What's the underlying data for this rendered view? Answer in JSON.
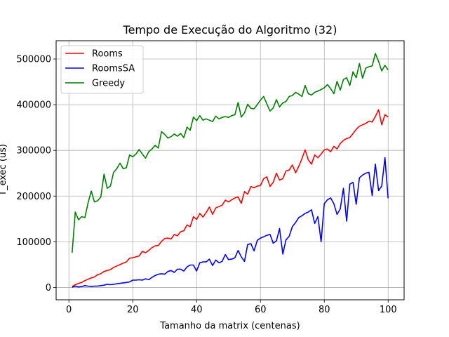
{
  "chart_data": {
    "type": "line",
    "title": "Tempo de Execução do Algoritmo (32)",
    "xlabel": "Tamanho da matrix (centenas)",
    "ylabel": "T_exec (us)",
    "xlim": [
      -4,
      105
    ],
    "ylim": [
      -27000,
      540000
    ],
    "xticks": [
      0,
      20,
      40,
      60,
      80,
      100
    ],
    "xtick_labels": [
      "0",
      "20",
      "40",
      "60",
      "80",
      "100"
    ],
    "yticks": [
      0,
      100000,
      200000,
      300000,
      400000,
      500000
    ],
    "ytick_labels": [
      "0",
      "100000",
      "200000",
      "300000",
      "400000",
      "500000"
    ],
    "grid": true,
    "legend_position": "top-left",
    "series": [
      {
        "name": "Rooms",
        "color": "#ff0000",
        "x": [
          1,
          2,
          3,
          4,
          5,
          6,
          7,
          8,
          9,
          10,
          11,
          12,
          13,
          14,
          15,
          16,
          17,
          18,
          19,
          20,
          21,
          22,
          23,
          24,
          25,
          26,
          27,
          28,
          29,
          30,
          31,
          32,
          33,
          34,
          35,
          36,
          37,
          38,
          39,
          40,
          41,
          42,
          43,
          44,
          45,
          46,
          47,
          48,
          49,
          50,
          51,
          52,
          53,
          54,
          55,
          56,
          57,
          58,
          59,
          60,
          61,
          62,
          63,
          64,
          65,
          66,
          67,
          68,
          69,
          70,
          71,
          72,
          73,
          74,
          75,
          76,
          77,
          78,
          79,
          80,
          81,
          82,
          83,
          84,
          85,
          86,
          87,
          88,
          89,
          90,
          91,
          92,
          93,
          94,
          95,
          96,
          97,
          98,
          99,
          100
        ],
        "values": [
          2000,
          6000,
          9000,
          11000,
          15000,
          18000,
          21000,
          23000,
          28000,
          30000,
          35000,
          37000,
          39000,
          44000,
          47000,
          50000,
          53000,
          56000,
          64000,
          65000,
          67000,
          69000,
          79000,
          76000,
          81000,
          87000,
          91000,
          92000,
          101000,
          107000,
          108000,
          106000,
          116000,
          113000,
          122000,
          124000,
          137000,
          133000,
          155000,
          149000,
          162000,
          154000,
          164000,
          176000,
          160000,
          174000,
          177000,
          180000,
          191000,
          187000,
          192000,
          196000,
          198000,
          184000,
          210000,
          204000,
          221000,
          218000,
          222000,
          223000,
          238000,
          242000,
          221000,
          230000,
          250000,
          235000,
          238000,
          255000,
          257000,
          268000,
          251000,
          265000,
          282000,
          301000,
          279000,
          270000,
          290000,
          284000,
          292000,
          301000,
          303000,
          297000,
          309000,
          303000,
          315000,
          322000,
          326000,
          328000,
          337000,
          346000,
          353000,
          356000,
          359000,
          364000,
          362000,
          374000,
          389000,
          356000,
          378000,
          373000
        ]
      },
      {
        "name": "RoomsSA",
        "color": "#0000ff",
        "x": [
          1,
          2,
          3,
          4,
          5,
          6,
          7,
          8,
          9,
          10,
          11,
          12,
          13,
          14,
          15,
          16,
          17,
          18,
          19,
          20,
          21,
          22,
          23,
          24,
          25,
          26,
          27,
          28,
          29,
          30,
          31,
          32,
          33,
          34,
          35,
          36,
          37,
          38,
          39,
          40,
          41,
          42,
          43,
          44,
          45,
          46,
          47,
          48,
          49,
          50,
          51,
          52,
          53,
          54,
          55,
          56,
          57,
          58,
          59,
          60,
          61,
          62,
          63,
          64,
          65,
          66,
          67,
          68,
          69,
          70,
          71,
          72,
          73,
          74,
          75,
          76,
          77,
          78,
          79,
          80,
          81,
          82,
          83,
          84,
          85,
          86,
          87,
          88,
          89,
          90,
          91,
          92,
          93,
          94,
          95,
          96,
          97,
          98,
          99,
          100
        ],
        "values": [
          500,
          3000,
          1000,
          2000,
          4000,
          3000,
          2000,
          3000,
          3000,
          4000,
          5000,
          7000,
          6000,
          7000,
          8000,
          9000,
          10000,
          11000,
          12000,
          16000,
          16000,
          17000,
          16000,
          19000,
          17000,
          22000,
          26000,
          29000,
          30000,
          29000,
          35000,
          37000,
          33000,
          40000,
          40000,
          36000,
          45000,
          49000,
          49000,
          36000,
          54000,
          56000,
          56000,
          62000,
          48000,
          60000,
          54000,
          57000,
          72000,
          61000,
          62000,
          65000,
          81000,
          67000,
          57000,
          94000,
          96000,
          80000,
          103000,
          108000,
          111000,
          114000,
          116000,
          97000,
          102000,
          129000,
          73000,
          104000,
          112000,
          133000,
          142000,
          153000,
          157000,
          162000,
          165000,
          170000,
          140000,
          155000,
          100000,
          183000,
          192000,
          196000,
          183000,
          160000,
          172000,
          217000,
          145000,
          226000,
          230000,
          182000,
          240000,
          246000,
          250000,
          252000,
          201000,
          270000,
          212000,
          222000,
          284000,
          195000
        ]
      },
      {
        "name": "Greedy",
        "color": "#008000",
        "x": [
          1,
          2,
          3,
          4,
          5,
          6,
          7,
          8,
          9,
          10,
          11,
          12,
          13,
          14,
          15,
          16,
          17,
          18,
          19,
          20,
          21,
          22,
          23,
          24,
          25,
          26,
          27,
          28,
          29,
          30,
          31,
          32,
          33,
          34,
          35,
          36,
          37,
          38,
          39,
          40,
          41,
          42,
          43,
          44,
          45,
          46,
          47,
          48,
          49,
          50,
          51,
          52,
          53,
          54,
          55,
          56,
          57,
          58,
          59,
          60,
          61,
          62,
          63,
          64,
          65,
          66,
          67,
          68,
          69,
          70,
          71,
          72,
          73,
          74,
          75,
          76,
          77,
          78,
          79,
          80,
          81,
          82,
          83,
          84,
          85,
          86,
          87,
          88,
          89,
          90,
          91,
          92,
          93,
          94,
          95,
          96,
          97,
          98,
          99,
          100
        ],
        "values": [
          76000,
          165000,
          148000,
          155000,
          153000,
          185000,
          211000,
          187000,
          190000,
          198000,
          248000,
          217000,
          222000,
          252000,
          260000,
          272000,
          260000,
          262000,
          290000,
          286000,
          292000,
          302000,
          292000,
          283000,
          297000,
          303000,
          311000,
          305000,
          341000,
          335000,
          327000,
          330000,
          336000,
          331000,
          337000,
          328000,
          351000,
          344000,
          373000,
          365000,
          376000,
          366000,
          369000,
          366000,
          363000,
          375000,
          369000,
          372000,
          374000,
          372000,
          376000,
          378000,
          405000,
          373000,
          382000,
          401000,
          392000,
          391000,
          400000,
          410000,
          418000,
          402000,
          386000,
          393000,
          411000,
          395000,
          404000,
          407000,
          418000,
          420000,
          427000,
          423000,
          418000,
          442000,
          424000,
          421000,
          427000,
          430000,
          433000,
          437000,
          444000,
          435000,
          424000,
          451000,
          432000,
          455000,
          459000,
          442000,
          472000,
          459000,
          490000,
          458000,
          480000,
          483000,
          485000,
          512000,
          495000,
          474000,
          486000,
          476000
        ]
      }
    ]
  }
}
